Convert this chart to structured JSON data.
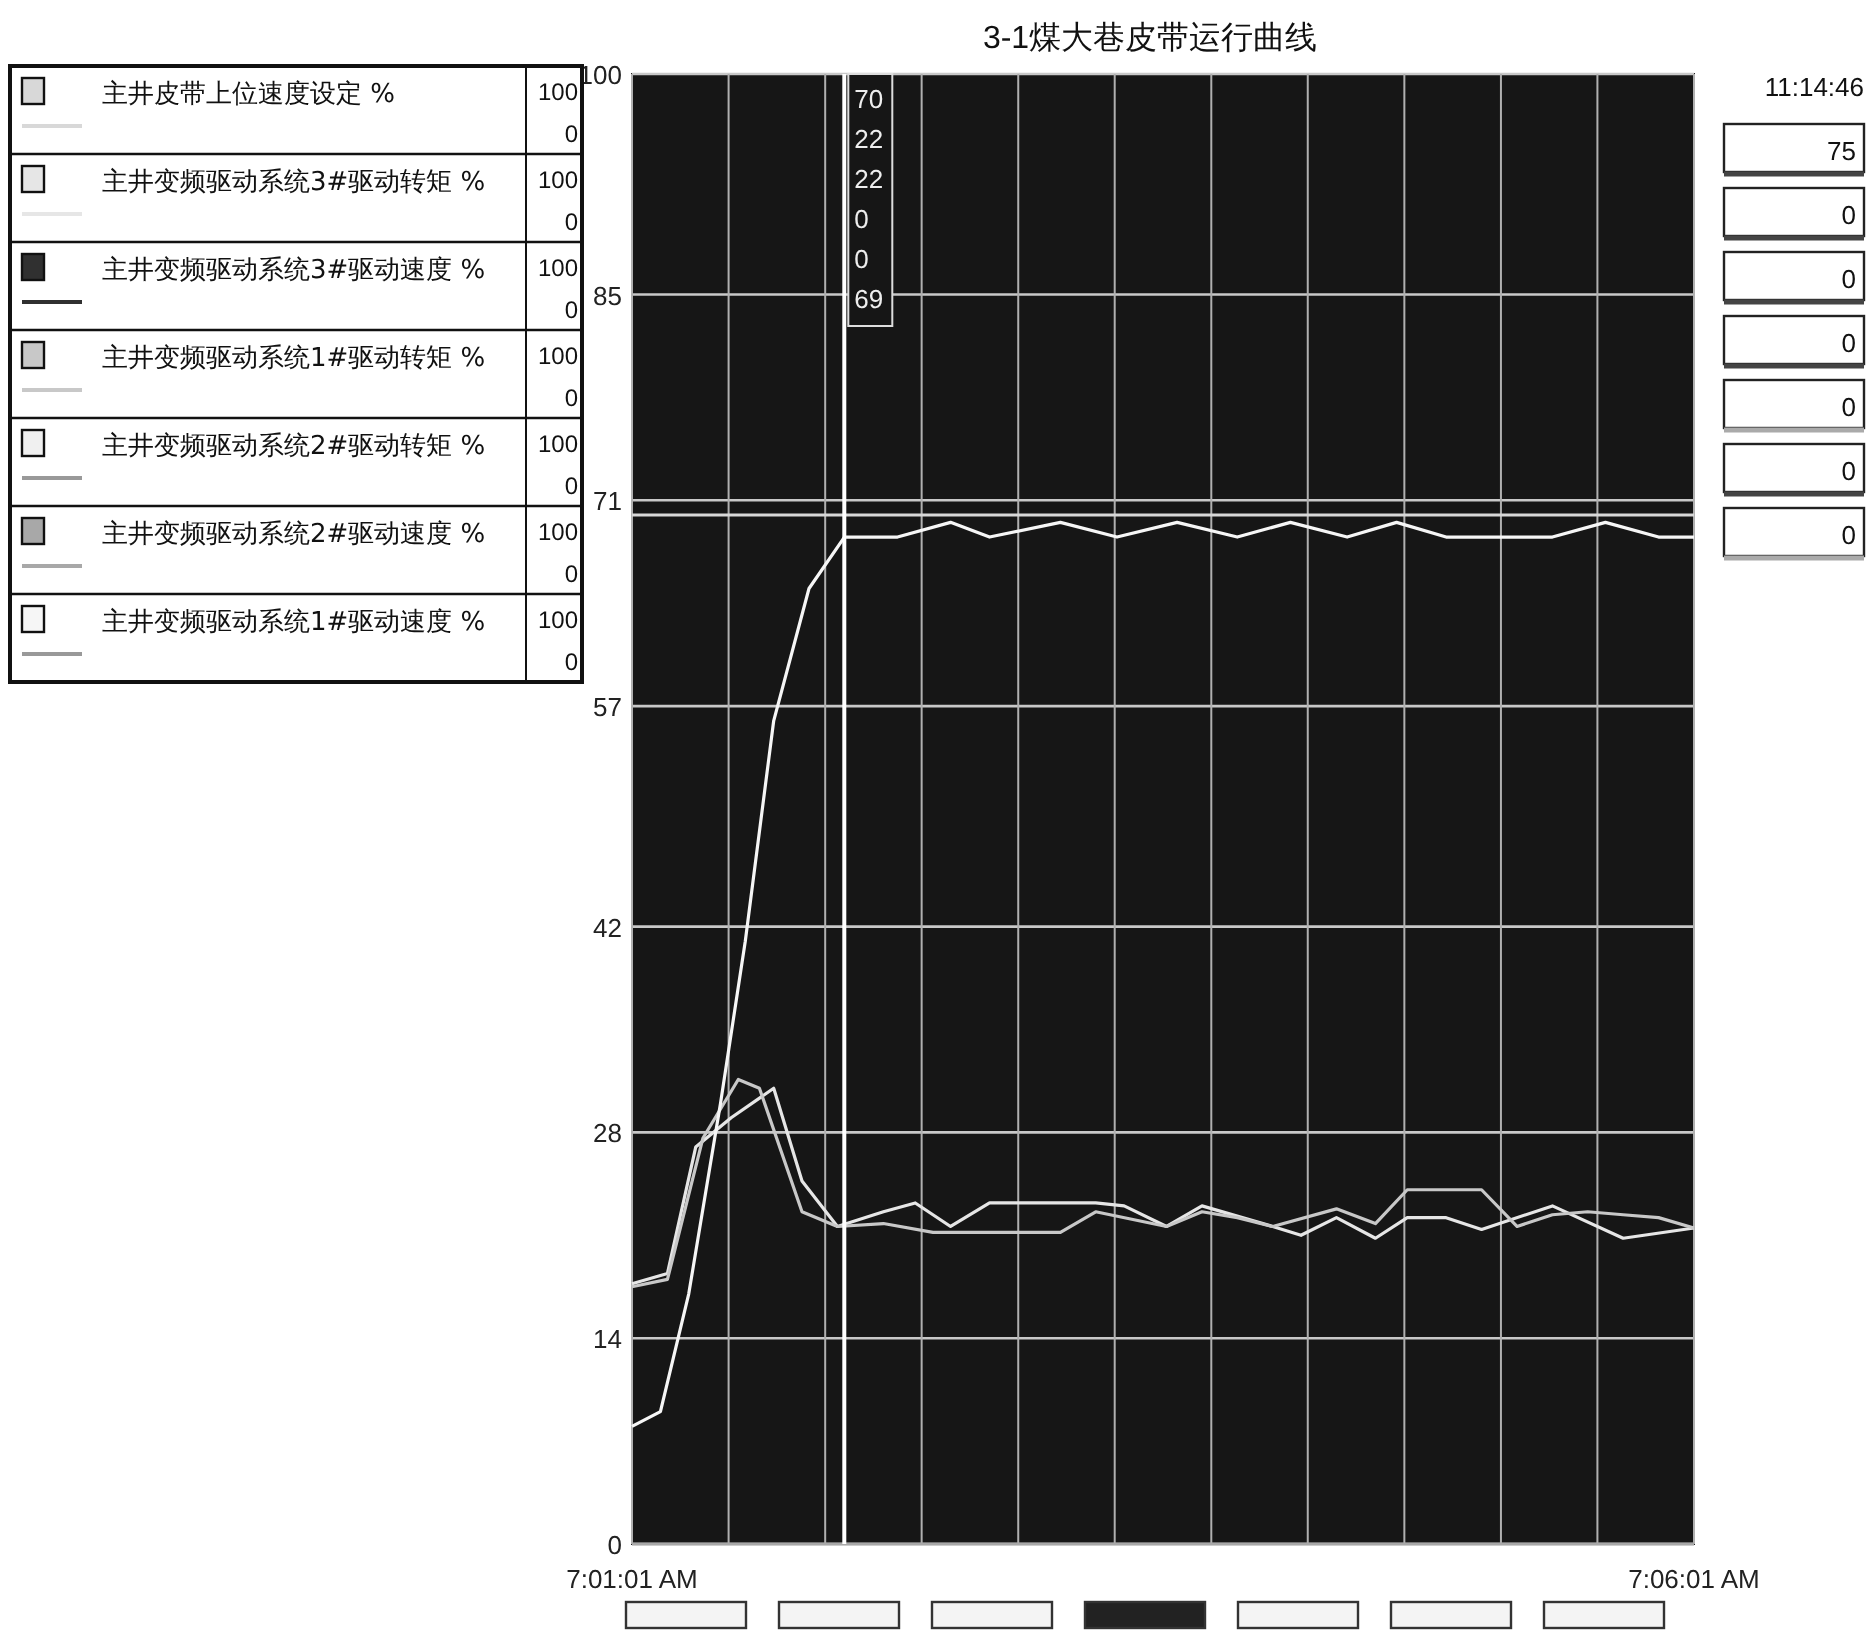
{
  "chart_data": {
    "type": "line",
    "title": "3-1煤大巷皮带运行曲线",
    "x": [
      7.01694,
      7.10028
    ],
    "xlim": [
      7.01694,
      7.10028
    ],
    "xticks": [
      {
        "value": 7.01694,
        "label": "7:01:01 AM"
      },
      {
        "value": 7.02452,
        "label": null
      },
      {
        "value": 7.0321,
        "label": null
      },
      {
        "value": 7.03967,
        "label": null
      },
      {
        "value": 7.04725,
        "label": null
      },
      {
        "value": 7.05482,
        "label": null
      },
      {
        "value": 7.0624,
        "label": null
      },
      {
        "value": 7.06997,
        "label": null
      },
      {
        "value": 7.07755,
        "label": null
      },
      {
        "value": 7.08513,
        "label": null
      },
      {
        "value": 7.0927,
        "label": null
      },
      {
        "value": 7.10028,
        "label": "7:06:01 AM"
      }
    ],
    "ylim": [
      0,
      100
    ],
    "yticks": [
      0,
      14,
      28,
      42,
      57,
      71,
      85,
      100
    ],
    "grid": true,
    "legend": "left",
    "series": [
      {
        "name": "主井皮带上位速度设定 %",
        "color": "#d8d8d8",
        "values": [
          70,
          70
        ]
      },
      {
        "name": "主井变频驱动系统3#驱动转矩 %",
        "color": "#e6e6e6",
        "x": [
          7.01694,
          7.01972,
          7.02194,
          7.02472,
          7.02806,
          7.03028,
          7.03306,
          7.03667,
          7.03917,
          7.04194,
          7.045,
          7.05333,
          7.05556,
          7.05889,
          7.06167,
          7.06722,
          7.06944,
          7.07222,
          7.07528,
          7.07778,
          7.08083,
          7.08361,
          7.08917,
          7.09472,
          7.10028
        ],
        "values": [
          17.7,
          18.4,
          27,
          29,
          31,
          24.7,
          21.6,
          22.6,
          23.2,
          21.6,
          23.2,
          23.2,
          23,
          21.6,
          23,
          21.6,
          21,
          22.2,
          20.8,
          22.2,
          22.2,
          21.4,
          23,
          20.8,
          21.5
        ]
      },
      {
        "name": "主井变频驱动系统3#驱动速度 %",
        "color": "#303030",
        "values": [
          null,
          null
        ]
      },
      {
        "name": "主井变频驱动系统1#驱动转矩 %",
        "color": "#c8c8c8",
        "x": [
          7.01694,
          7.01972,
          7.0225,
          7.02528,
          7.02694,
          7.03028,
          7.03306,
          7.03667,
          7.04056,
          7.045,
          7.05056,
          7.05333,
          7.05889,
          7.06167,
          7.06444,
          7.06722,
          7.07222,
          7.07528,
          7.07778,
          7.08361,
          7.08639,
          7.08917,
          7.09194,
          7.09472,
          7.0975,
          7.10028
        ],
        "values": [
          17.5,
          18,
          27.6,
          31.6,
          31,
          22.6,
          21.6,
          21.8,
          21.2,
          21.2,
          21.2,
          22.6,
          21.6,
          22.6,
          22.2,
          21.6,
          22.8,
          21.8,
          24.1,
          24.1,
          21.6,
          22.4,
          22.6,
          22.4,
          22.2,
          21.5
        ]
      },
      {
        "name": "主井变频驱动系统2#驱动转矩 %",
        "color": "#f0f0f0",
        "values": [
          null,
          null
        ]
      },
      {
        "name": "主井变频驱动系统2#驱动速度 %",
        "color": "#a8a8a8",
        "values": [
          0,
          0
        ]
      },
      {
        "name": "主井变频驱动系统1#驱动速度 %",
        "color": "#f6f6f6",
        "x": [
          7.01694,
          7.01917,
          7.02139,
          7.02389,
          7.02583,
          7.02806,
          7.03083,
          7.03361,
          7.03778,
          7.04194,
          7.045,
          7.05056,
          7.055,
          7.05972,
          7.06444,
          7.06861,
          7.07306,
          7.07694,
          7.08083,
          7.08917,
          7.09333,
          7.0975,
          7.10028
        ],
        "values": [
          8,
          9,
          17,
          30,
          41,
          56,
          65,
          68.5,
          68.5,
          69.5,
          68.5,
          69.5,
          68.5,
          69.5,
          68.5,
          69.5,
          68.5,
          69.5,
          68.5,
          68.5,
          69.5,
          68.5,
          68.5
        ]
      }
    ],
    "ref_lines": [
      {
        "axis": "x",
        "value": 7.0336,
        "color": "#ffffff"
      }
    ],
    "annotations": [
      "11:14:46",
      "75",
      "0",
      "0",
      "0",
      "0",
      "0",
      "0",
      "100",
      "0",
      "100",
      "0",
      "100",
      "0",
      "100",
      "0",
      "100",
      "0",
      "100",
      "0",
      "100",
      "0",
      "70",
      "22",
      "22",
      "0",
      "0",
      "69"
    ]
  }
}
